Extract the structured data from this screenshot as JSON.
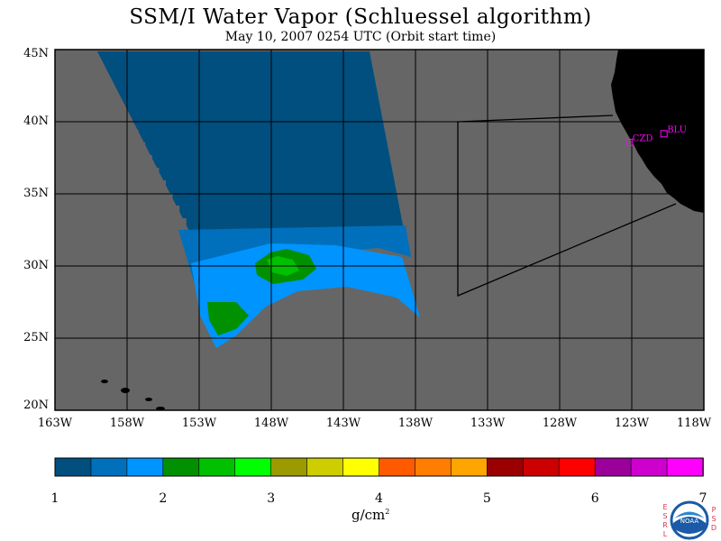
{
  "title": "SSM/I Water Vapor (Schluessel algorithm)",
  "subtitle": "May 10, 2007  0254 UTC  (Orbit start time)",
  "map": {
    "lat_labels": [
      "45N",
      "40N",
      "35N",
      "30N",
      "25N",
      "20N"
    ],
    "lon_labels": [
      "163W",
      "158W",
      "153W",
      "148W",
      "143W",
      "138W",
      "133W",
      "128W",
      "123W",
      "118W"
    ],
    "lat_range": [
      20,
      45
    ],
    "lon_range": [
      -163,
      -118
    ],
    "colors": {
      "no_data": "#666666",
      "land": "#000000",
      "grid": "#000000",
      "station": "#ff00ff"
    },
    "stations": [
      {
        "label": "CZD",
        "lat": 38.6,
        "lon": -123.2
      },
      {
        "label": "BLU",
        "lat": 39.2,
        "lon": -120.8
      }
    ]
  },
  "colorbar": {
    "colors": [
      "#004f7e",
      "#0070bd",
      "#0094ff",
      "#009000",
      "#00c000",
      "#00ff00",
      "#9b9b00",
      "#cdcd00",
      "#ffff00",
      "#ff5a00",
      "#ff7d00",
      "#ffa500",
      "#9b0000",
      "#cd0000",
      "#ff0000",
      "#9b009b",
      "#cd00cd",
      "#ff00ff"
    ],
    "ticks": [
      "1",
      "2",
      "3",
      "4",
      "5",
      "6",
      "7"
    ],
    "units_base": "g/cm",
    "units_exp": "2"
  },
  "logo": {
    "left_letters": [
      "E",
      "S",
      "R",
      "L"
    ],
    "right_letters": [
      "P",
      "S",
      "D"
    ],
    "center_text": "NOAA"
  }
}
